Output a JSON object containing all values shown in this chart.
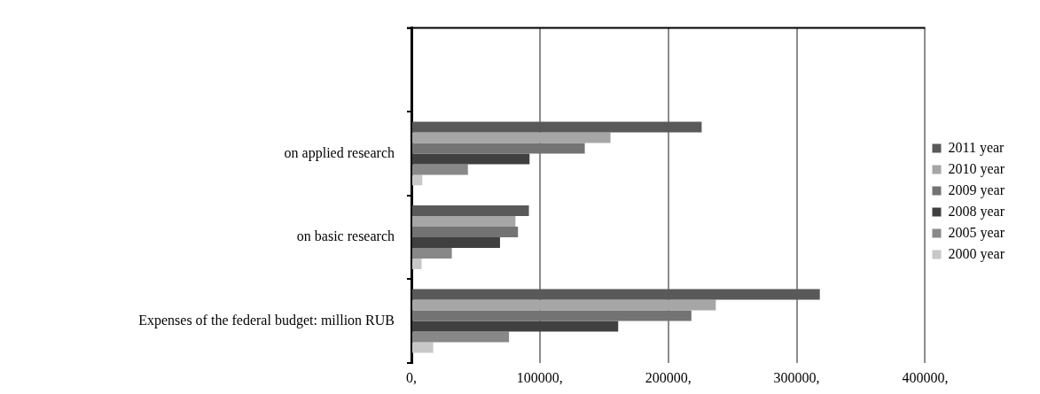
{
  "chart_data": {
    "type": "bar",
    "orientation": "horizontal",
    "categories": [
      null,
      "on applied research",
      "on basic research",
      "Expenses of the federal budget: million RUB"
    ],
    "series": [
      {
        "name": "2011 year",
        "color": "#595959",
        "values": [
          null,
          226000,
          91500,
          318000
        ]
      },
      {
        "name": "2010 year",
        "color": "#a6a6a6",
        "values": [
          null,
          155000,
          81000,
          237000
        ]
      },
      {
        "name": "2009 year",
        "color": "#737373",
        "values": [
          null,
          135000,
          83000,
          218000
        ]
      },
      {
        "name": "2008 year",
        "color": "#404040",
        "values": [
          null,
          92000,
          69000,
          161000
        ]
      },
      {
        "name": "2005 year",
        "color": "#888888",
        "values": [
          null,
          44000,
          31500,
          76000
        ]
      },
      {
        "name": "2000 year",
        "color": "#c8c8c8",
        "values": [
          null,
          8500,
          8000,
          17000
        ]
      }
    ],
    "xlim": [
      0,
      400000
    ],
    "xticks": [
      {
        "value": 0,
        "label": "0,"
      },
      {
        "value": 100000,
        "label": "100000,"
      },
      {
        "value": 200000,
        "label": "200000,"
      },
      {
        "value": 300000,
        "label": "300000,"
      },
      {
        "value": 400000,
        "label": "400000,"
      }
    ],
    "grid": "x",
    "legend": "right"
  }
}
